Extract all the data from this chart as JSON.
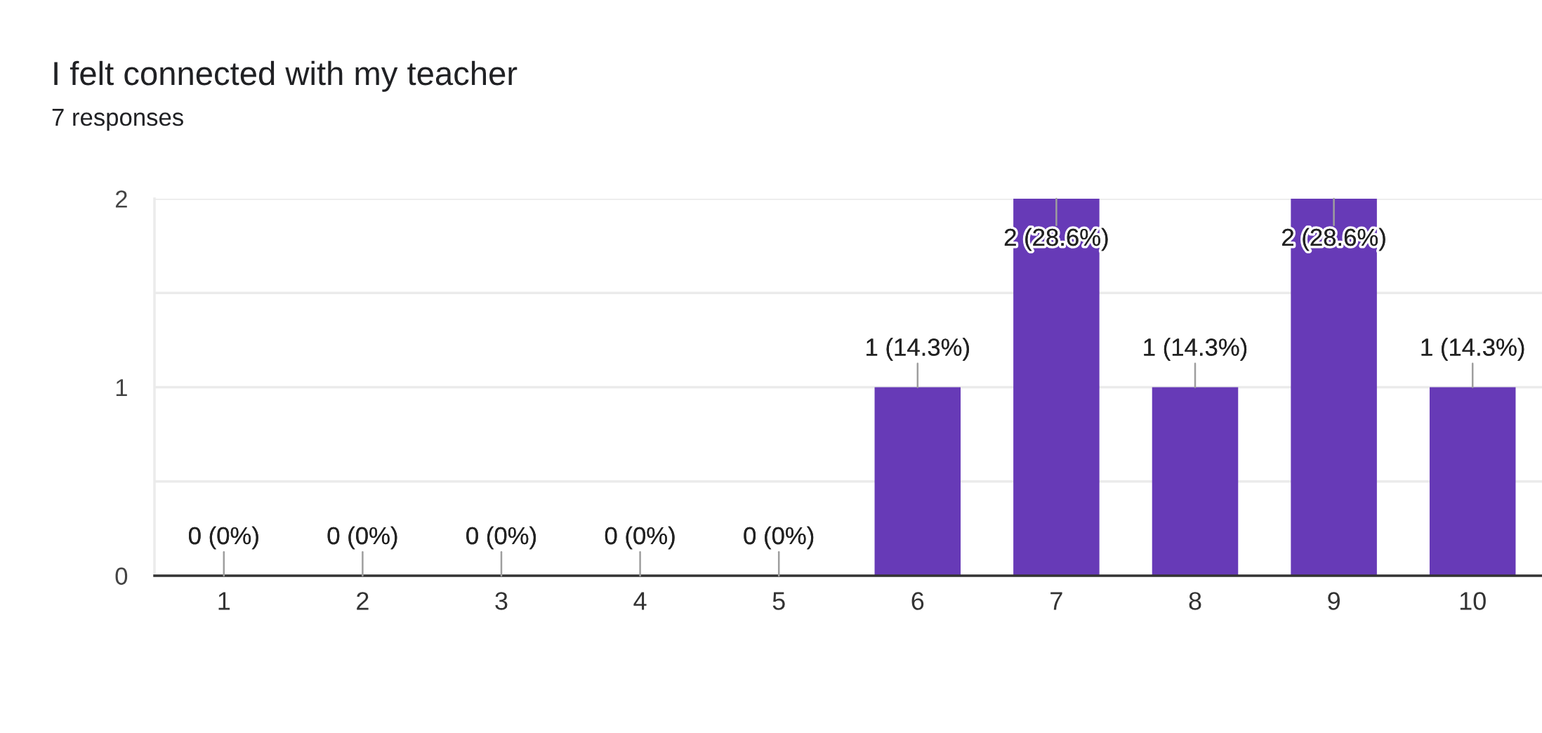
{
  "chart_data": {
    "type": "bar",
    "title": "I felt connected with my teacher",
    "subtitle": "7 responses",
    "categories": [
      "1",
      "2",
      "3",
      "4",
      "5",
      "6",
      "7",
      "8",
      "9",
      "10"
    ],
    "values": [
      0,
      0,
      0,
      0,
      0,
      1,
      2,
      1,
      2,
      1
    ],
    "color": "#673ab7",
    "value_labels": [
      "0 (0%)",
      "0 (0%)",
      "0 (0%)",
      "0 (0%)",
      "0 (0%)",
      "1 (14.3%)",
      "2 (28.6%)",
      "1 (14.3%)",
      "2 (28.6%)",
      "1 (14.3%)"
    ],
    "ylim": [
      0,
      2
    ],
    "yticks": [
      0,
      {
        "value": 0.5,
        "label": null
      },
      1,
      {
        "value": 1.5,
        "label": null
      },
      2
    ],
    "grid": "y"
  }
}
